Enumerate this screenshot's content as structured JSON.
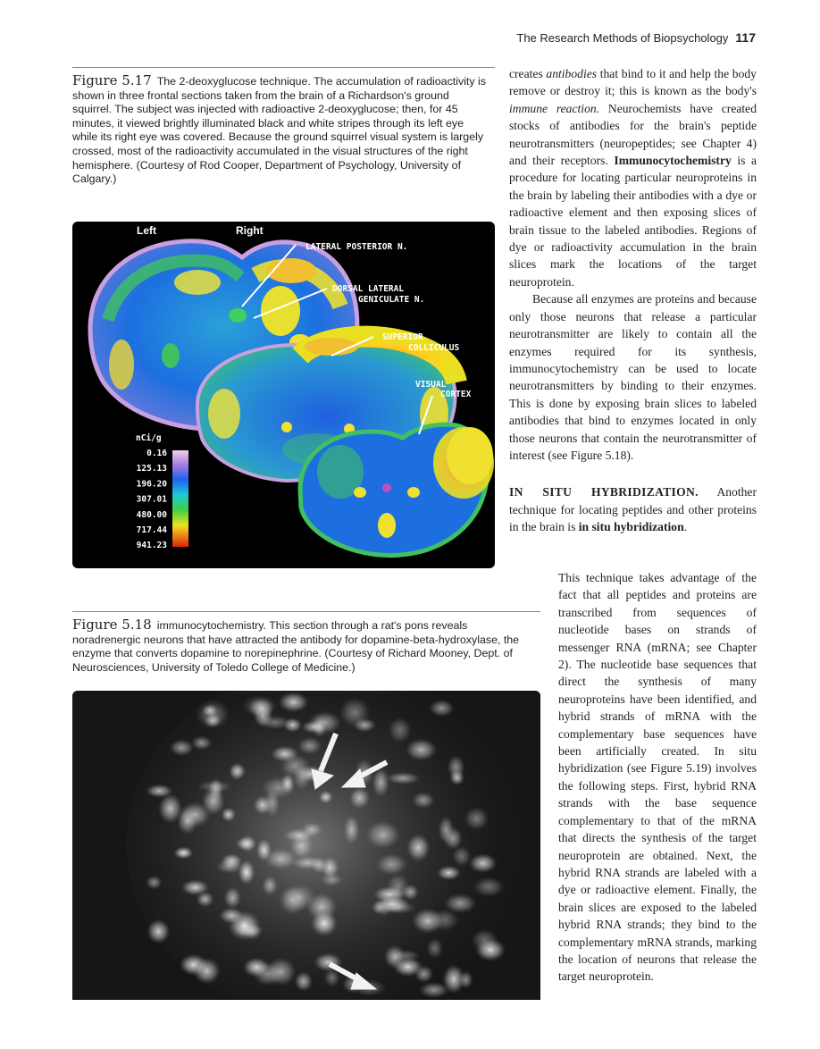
{
  "header": {
    "running_title": "The Research Methods of Biopsychology",
    "page_number": "117"
  },
  "figure_5_17": {
    "label": "Figure 5.17",
    "caption": "The 2-deoxyglucose technique. The accumulation of radioactivity is shown in three frontal sections taken from the brain of a Richardson's ground squirrel. The subject was injected with radioactive 2-deoxyglucose; then, for 45 minutes, it viewed brightly illuminated black and white stripes through its left eye while its right eye was covered. Because the ground squirrel visual system is largely crossed, most of the radioactivity accumulated in the visual structures of the right hemisphere. (Courtesy of Rod Cooper, Department of Psychology, University of Calgary.)",
    "side_left": "Left",
    "side_right": "Right",
    "labels": {
      "lateral_posterior": "LATERAL POSTERIOR N.",
      "dorsal_lateral_1": "DORSAL LATERAL",
      "dorsal_lateral_2": "GENICULATE N.",
      "superior_1": "SUPERIOR",
      "superior_2": "COLLICULUS",
      "visual_1": "VISUAL",
      "visual_2": "CORTEX"
    },
    "scale_unit": "nCi/g",
    "scale_values": [
      "0.16",
      "125.13",
      "196.20",
      "307.01",
      "480.00",
      "717.44",
      "941.23"
    ],
    "scale_colors": [
      "#e8b8e8",
      "#8a6ad8",
      "#1f6cf0",
      "#27c8d8",
      "#44cc44",
      "#f0e020",
      "#e83a10"
    ]
  },
  "figure_5_18": {
    "label": "Figure 5.18",
    "caption": "immunocytochemistry. This section through a rat's pons reveals noradrenergic neurons that have attracted the antibody for dopamine-beta-hydroxylase, the enzyme that converts dopamine to norepinephrine. (Courtesy of Richard Mooney, Dept. of Neurosciences, University of Toledo College of Medicine.)"
  },
  "body": {
    "p1_a": "creates ",
    "p1_b": "antibodies",
    "p1_c": " that bind to it and help the body remove or destroy it; this is known as the body's ",
    "p1_d": "immune reaction",
    "p1_e": ". Neurochemists have created stocks of antibodies for the brain's peptide neurotransmitters (neuropeptides; see Chapter 4) and their receptors. ",
    "p1_f": "Immunocytochemistry",
    "p1_g": " is a procedure for locating particular neuroproteins in the brain by labeling their antibodies with a dye or radioactive element and then exposing slices of brain tissue to the labeled antibodies. Regions of dye or radioactivity accumulation in the brain slices mark the locations of the target neuroprotein.",
    "p2": "Because all enzymes are proteins and because only those neurons that release a particular neurotransmitter are likely to contain all the enzymes required for its synthesis, immunocytochemistry can be used to locate neurotransmitters by binding to their enzymes. This is done by exposing brain slices to labeled antibodies that bind to enzymes located in only those neurons that contain the neurotransmitter of interest (see Figure 5.18).",
    "p3_head": "IN SITU HYBRIDIZATION.",
    "p3_a": " Another technique for locating peptides and other proteins in the brain is ",
    "p3_b": "in situ hybridization",
    "p3_c": ".",
    "p4": "This technique takes advantage of the fact that all peptides and proteins are transcribed from sequences of nucleotide bases on strands of messenger RNA (mRNA; see Chapter 2). The nucleotide base sequences that direct the synthesis of many neuroproteins have been identified, and hybrid strands of mRNA with the complementary base sequences have been artificially created. In situ hybridization (see Figure 5.19) involves the following steps. First, hybrid RNA strands with the base sequence complementary to that of the mRNA that directs the synthesis of the target neuroprotein are obtained. Next, the hybrid RNA strands are labeled with a dye or radioactive element. Finally, the brain slices are exposed to the labeled hybrid RNA strands; they bind to the complementary mRNA strands, marking the location of neurons that release the target neuroprotein."
  }
}
